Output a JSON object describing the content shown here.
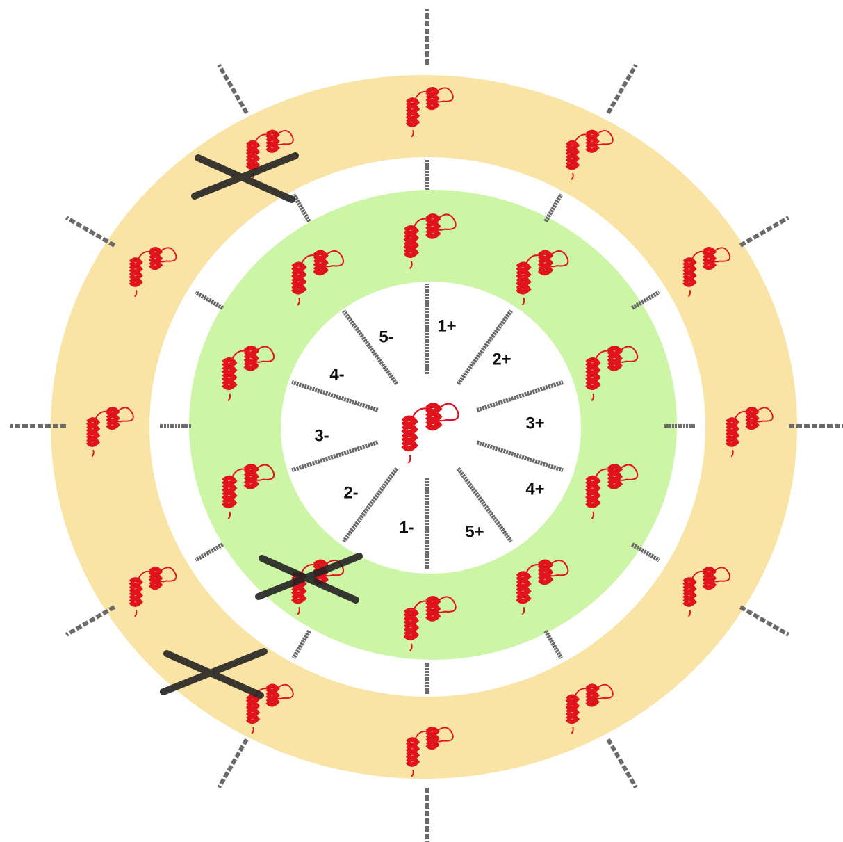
{
  "labels": [
    "1+",
    "2+",
    "3+",
    "4+",
    "5+",
    "1-",
    "2-",
    "3-",
    "4-",
    "5-"
  ]
}
